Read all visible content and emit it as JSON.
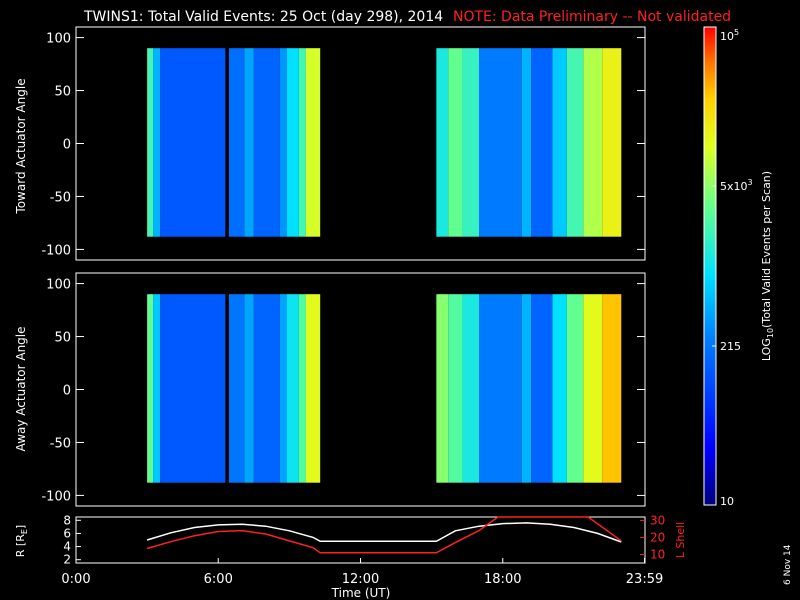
{
  "header": {
    "title": "TWINS1: Total Valid Events: 25 Oct (day 298), 2014",
    "note": "NOTE: Data Preliminary -- Not validated",
    "note_color": "#ff2020"
  },
  "footer": {
    "date_stamp": "6 Nov 14"
  },
  "chart_data": [
    {
      "type": "heatmap",
      "panel": "toward",
      "ylabel": "Toward Actuator Angle",
      "xlim": [
        0,
        24
      ],
      "ylim": [
        -110,
        110
      ],
      "ytick_labels": [
        "100",
        "50",
        "0",
        "-50",
        "-100"
      ],
      "ytick_values": [
        100,
        50,
        0,
        -50,
        -100
      ],
      "data_extent_angle": [
        -88,
        90
      ],
      "data_intervals_hours": [
        [
          3.0,
          6.3
        ],
        [
          6.45,
          10.3
        ],
        [
          15.2,
          23.0
        ]
      ],
      "columns": [
        {
          "x0": 3.0,
          "x1": 3.25,
          "v": 0.58
        },
        {
          "x0": 3.25,
          "x1": 3.55,
          "v": 0.42
        },
        {
          "x0": 3.55,
          "x1": 6.3,
          "v": 0.28
        },
        {
          "x0": 6.45,
          "x1": 7.1,
          "v": 0.32
        },
        {
          "x0": 7.1,
          "x1": 7.5,
          "v": 0.4
        },
        {
          "x0": 7.5,
          "x1": 8.6,
          "v": 0.3
        },
        {
          "x0": 8.6,
          "x1": 8.9,
          "v": 0.38
        },
        {
          "x0": 8.9,
          "x1": 9.4,
          "v": 0.48
        },
        {
          "x0": 9.4,
          "x1": 9.7,
          "v": 0.58
        },
        {
          "x0": 9.7,
          "x1": 10.3,
          "v": 0.74
        },
        {
          "x0": 15.2,
          "x1": 15.7,
          "v": 0.52
        },
        {
          "x0": 15.7,
          "x1": 16.3,
          "v": 0.62
        },
        {
          "x0": 16.3,
          "x1": 17.0,
          "v": 0.56
        },
        {
          "x0": 17.0,
          "x1": 18.8,
          "v": 0.34
        },
        {
          "x0": 18.8,
          "x1": 19.2,
          "v": 0.42
        },
        {
          "x0": 19.2,
          "x1": 20.1,
          "v": 0.3
        },
        {
          "x0": 20.1,
          "x1": 20.7,
          "v": 0.45
        },
        {
          "x0": 20.7,
          "x1": 21.4,
          "v": 0.58
        },
        {
          "x0": 21.4,
          "x1": 22.2,
          "v": 0.7
        },
        {
          "x0": 22.2,
          "x1": 23.0,
          "v": 0.78
        }
      ]
    },
    {
      "type": "heatmap",
      "panel": "away",
      "ylabel": "Away Actuator Angle",
      "xlim": [
        0,
        24
      ],
      "ylim": [
        -110,
        110
      ],
      "ytick_labels": [
        "100",
        "50",
        "0",
        "-50",
        "-100"
      ],
      "ytick_values": [
        100,
        50,
        0,
        -50,
        -100
      ],
      "data_extent_angle": [
        -88,
        90
      ],
      "data_intervals_hours": [
        [
          3.0,
          6.3
        ],
        [
          6.45,
          10.3
        ],
        [
          15.2,
          23.0
        ]
      ],
      "columns": [
        {
          "x0": 3.0,
          "x1": 3.25,
          "v": 0.62
        },
        {
          "x0": 3.25,
          "x1": 3.55,
          "v": 0.45
        },
        {
          "x0": 3.55,
          "x1": 6.3,
          "v": 0.28
        },
        {
          "x0": 6.45,
          "x1": 7.1,
          "v": 0.33
        },
        {
          "x0": 7.1,
          "x1": 7.5,
          "v": 0.4
        },
        {
          "x0": 7.5,
          "x1": 8.6,
          "v": 0.3
        },
        {
          "x0": 8.6,
          "x1": 8.9,
          "v": 0.4
        },
        {
          "x0": 8.9,
          "x1": 9.4,
          "v": 0.5
        },
        {
          "x0": 9.4,
          "x1": 9.7,
          "v": 0.6
        },
        {
          "x0": 9.7,
          "x1": 10.3,
          "v": 0.76
        },
        {
          "x0": 15.2,
          "x1": 15.7,
          "v": 0.66
        },
        {
          "x0": 15.7,
          "x1": 16.3,
          "v": 0.6
        },
        {
          "x0": 16.3,
          "x1": 17.0,
          "v": 0.52
        },
        {
          "x0": 17.0,
          "x1": 18.8,
          "v": 0.34
        },
        {
          "x0": 18.8,
          "x1": 19.2,
          "v": 0.42
        },
        {
          "x0": 19.2,
          "x1": 20.1,
          "v": 0.3
        },
        {
          "x0": 20.1,
          "x1": 20.7,
          "v": 0.48
        },
        {
          "x0": 20.7,
          "x1": 21.4,
          "v": 0.62
        },
        {
          "x0": 21.4,
          "x1": 22.2,
          "v": 0.76
        },
        {
          "x0": 22.2,
          "x1": 23.0,
          "v": 0.86
        }
      ]
    },
    {
      "type": "line",
      "panel": "ephemeris",
      "ylabel_left": "R [R",
      "ylabel_left_sub": "E",
      "ylabel_left_end": "]",
      "ylabel_right": "L Shell",
      "xlabel": "Time (UT)",
      "xlim": [
        0,
        24
      ],
      "xtick_labels": [
        "0:00",
        "6:00",
        "12:00",
        "18:00",
        "23:59"
      ],
      "xtick_values": [
        0,
        6,
        12,
        18,
        23.98
      ],
      "left_ylim": [
        1.5,
        8.5
      ],
      "left_ytick_labels": [
        "8",
        "6",
        "4",
        "2"
      ],
      "left_ytick_values": [
        8,
        6,
        4,
        2
      ],
      "right_ylim": [
        5,
        32
      ],
      "right_ytick_labels": [
        "30",
        "20",
        "10"
      ],
      "right_ytick_values": [
        30,
        20,
        10
      ],
      "right_color": "#ff2020",
      "series": [
        {
          "axis": "left",
          "color": "#ffffff",
          "x": [
            3,
            4,
            5,
            6,
            7,
            8,
            9,
            10,
            10.3,
            12,
            14,
            15.2,
            16,
            17,
            18,
            19,
            20,
            21,
            22,
            23
          ],
          "y": [
            5.0,
            6.1,
            6.9,
            7.3,
            7.4,
            7.1,
            6.4,
            5.4,
            4.8,
            4.8,
            4.8,
            4.8,
            6.4,
            7.1,
            7.5,
            7.6,
            7.4,
            6.9,
            6.0,
            4.7
          ]
        },
        {
          "axis": "right",
          "color": "#ff2020",
          "x": [
            3,
            4,
            5,
            6,
            7,
            8,
            9,
            10,
            10.3,
            12,
            14,
            15.2,
            16,
            17,
            17.8,
            21.6,
            22,
            23
          ],
          "y": [
            13.5,
            17.5,
            21,
            23.5,
            24,
            22,
            18,
            14,
            11,
            11,
            11,
            11,
            17,
            24,
            32,
            32,
            28,
            18
          ]
        }
      ]
    }
  ],
  "colorbar": {
    "label": "LOG",
    "label_sub": "10",
    "label_end": "(Total Valid Events per Scan)",
    "top_label": "10",
    "top_label_sup": "5",
    "mid_label": "5x10",
    "mid_label_sup": "3",
    "low_label": "215",
    "bottom_label": "10"
  }
}
